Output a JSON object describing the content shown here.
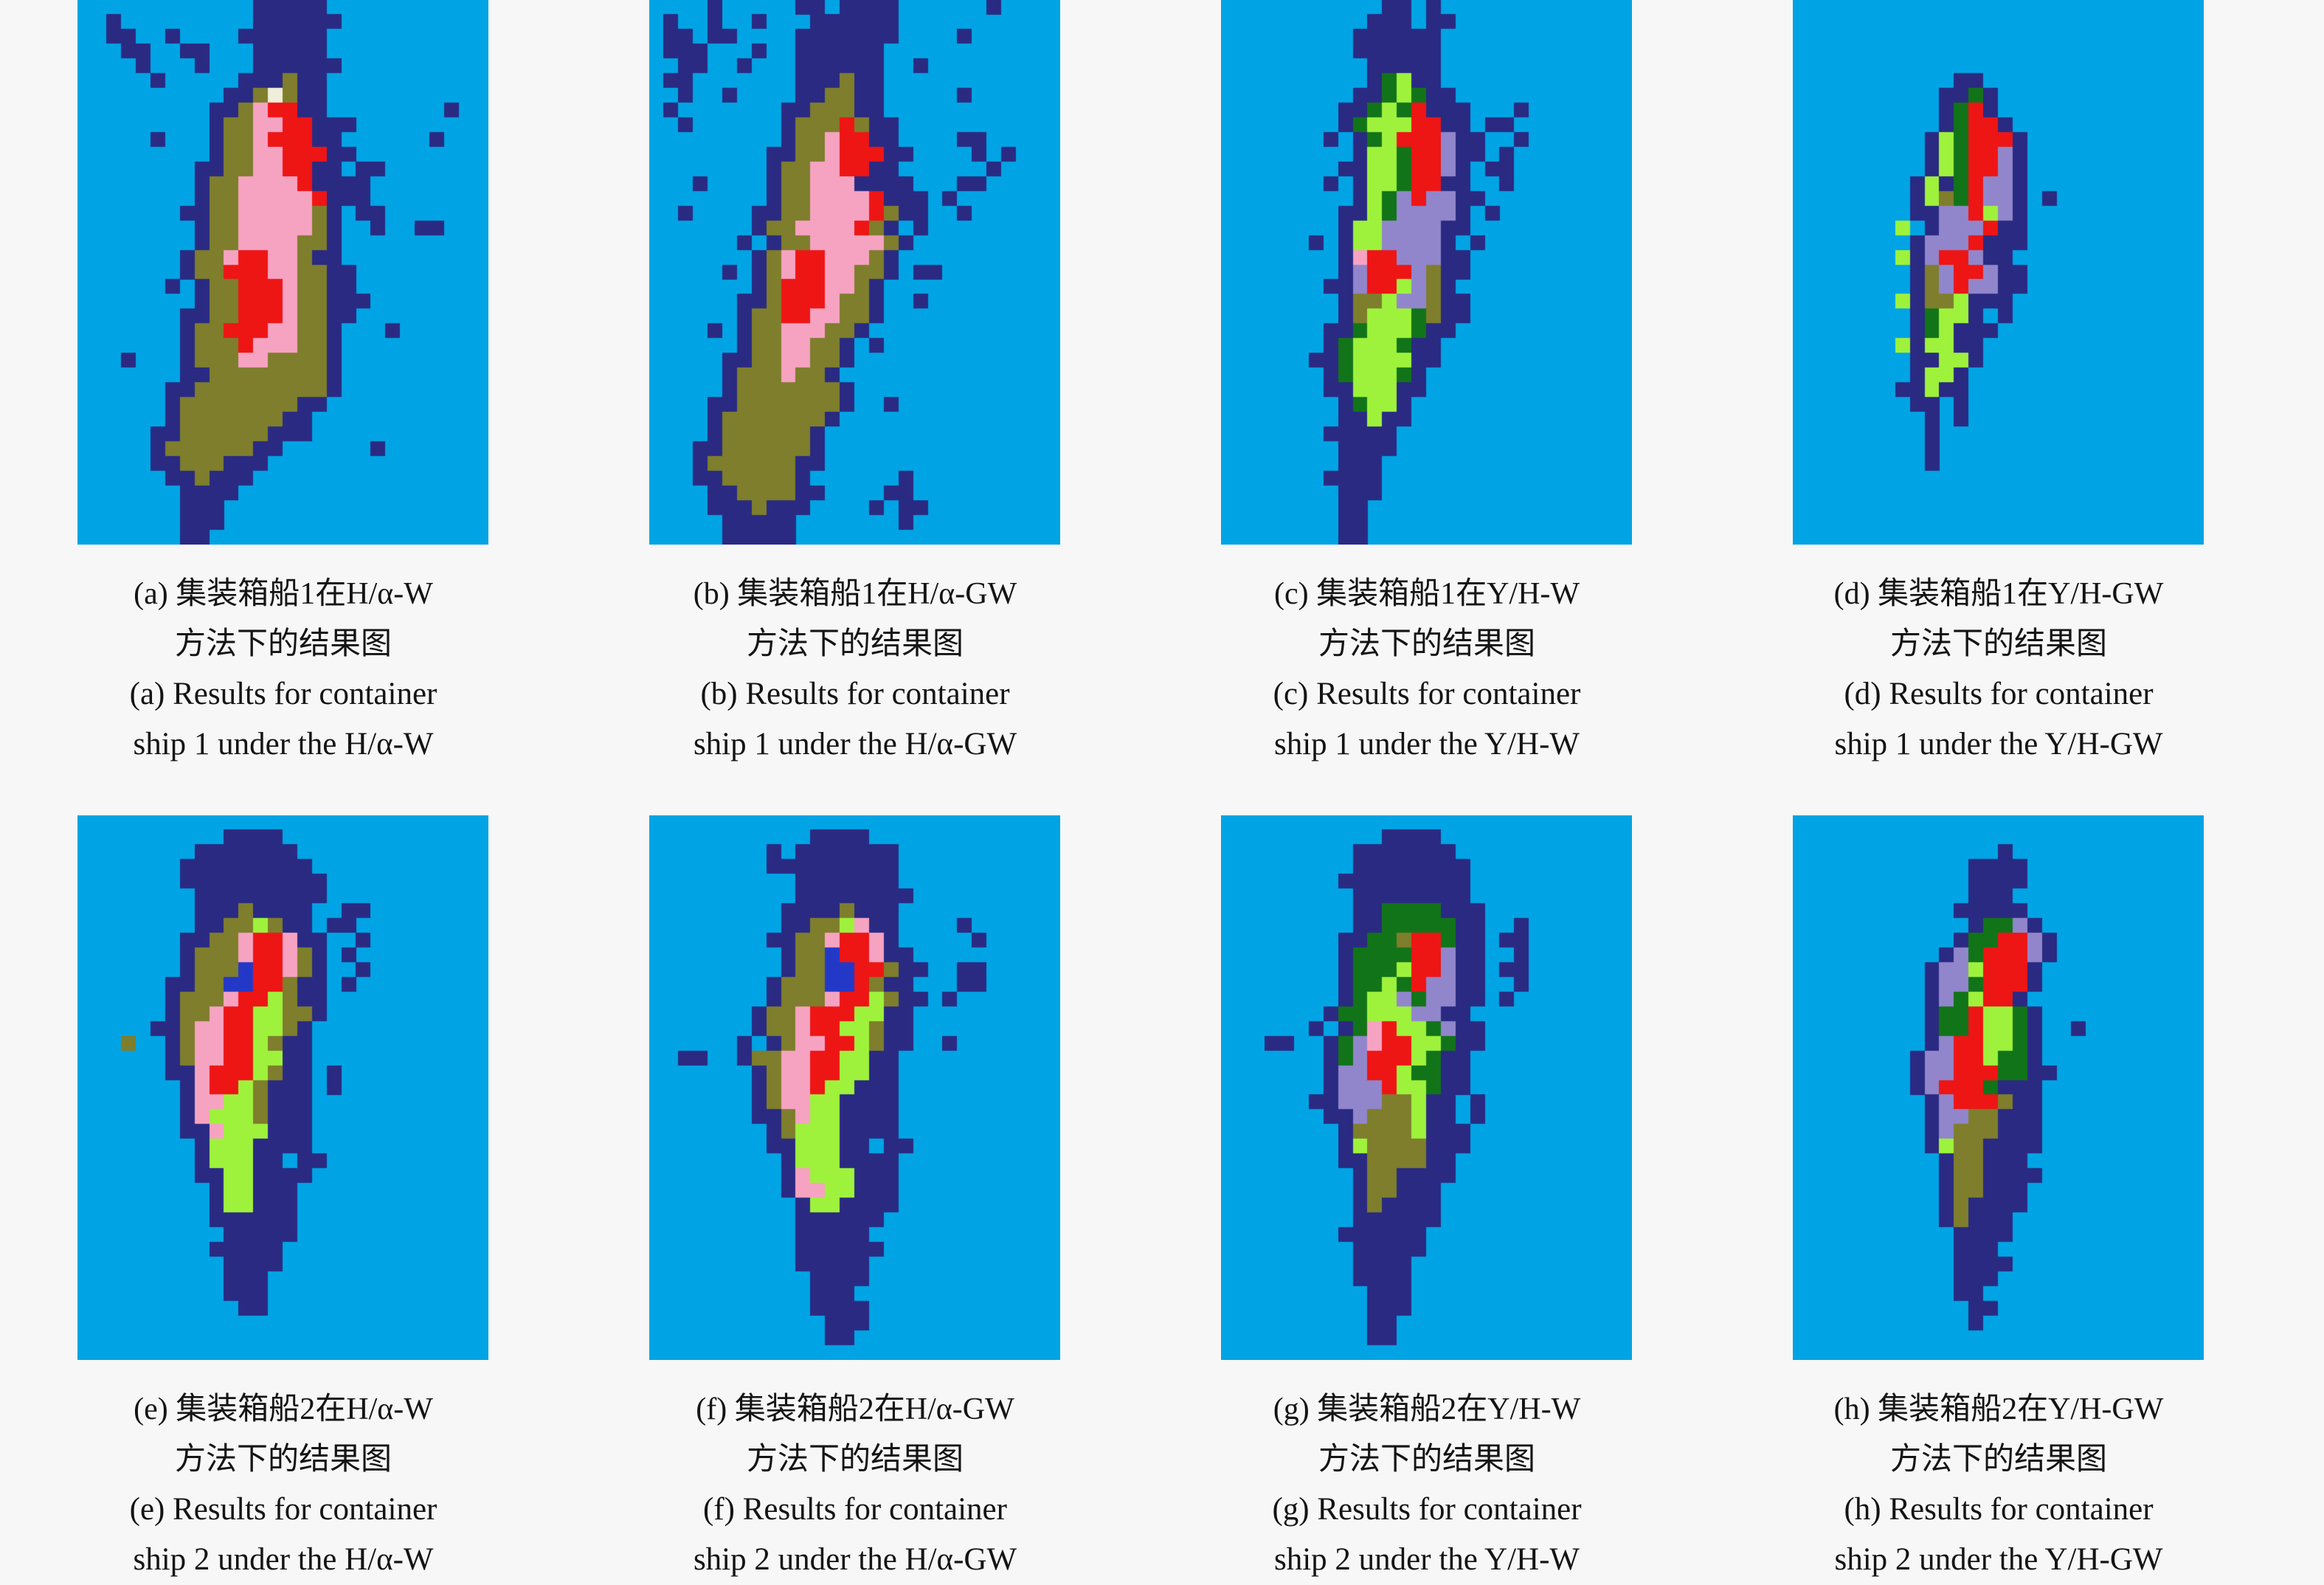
{
  "page": {
    "background": "#F7F7F7",
    "figure_type": "classification result maps"
  },
  "palette": {
    ".": "#00A4E4",
    "n": "#2A2A82",
    "o": "#7E7E2C",
    "g": "#127418",
    "l": "#9EF23C",
    "r": "#EE1515",
    "p": "#F6A3C2",
    "u": "#9186CB",
    "b": "#2438C8",
    "w": "#EEEEDA"
  },
  "grid": {
    "cols": 28,
    "rows": 37
  },
  "panels": [
    {
      "id": "a",
      "caption_zh_1": "(a) 集装箱船1在H/α-W",
      "caption_zh_2": "方法下的结果图",
      "caption_en_1": "(a) Results for container",
      "caption_en_2": "ship 1 under the H/α-W",
      "pixels": [
        "............nnnnn",
        "..n.........nnnnnn",
        "..nn..n....nnnnnn",
        "...nn..nn...nnnnn",
        "....n...n...nnnnnn",
        ".....n.....nnnonn",
        "..........nnowonn",
        ".........nnoprrnn........n",
        ".........noopprrnnn",
        ".....n...nooprrrnn......n",
        ".........noopprrrnn",
        "........nnoopprrnn.nn",
        "........noopppprnnnn",
        "........nooppppprnnn",
        ".......nnoopppppon.nn",
        "........noopppppon..n..nn",
        "........nooppppoon",
        ".......nooprrpponn",
        ".......noorrrppoonn",
        "......n.noorrrpoonn",
        "........noorrrpoonnn",
        ".......nnoorrrpoonn",
        ".......noorrrppoon...n",
        ".......nooorpppoon",
        "...n...noooppoooon",
        ".......nnoooooooon",
        "......nnooooooooon",
        "......noooooooonn",
        "......nooooooonn",
        ".....nnoooooonnn",
        ".....noooooonn......n",
        ".....nnooonnn",
        "......nnonnn",
        ".......nnnn",
        ".......nnn",
        ".......nnn",
        ".......nn"
      ]
    },
    {
      "id": "b",
      "caption_zh_1": "(b) 集装箱船1在H/α-GW",
      "caption_zh_2": "方法下的结果图",
      "caption_en_1": "(b) Results for container",
      "caption_en_2": "ship 1 under the H/α-GW",
      "pixels": [
        "....n.....nn.nnnn......n",
        ".n..n..n...nnnnnn",
        ".nn.nn....nnnnnnn....n",
        ".nnn...n..nnnnnn",
        "..nn..n...nnnnnn..n",
        ".nn.......nnnonn",
        "..n..n....nnoonn.....n",
        ".n.......nnooonn",
        "..n......noooronn",
        ".........nooprrnn....nn",
        "........nnooprrrnn....n.n",
        "........noopprrnn......n",
        "...n....noopppnnnn...nn",
        "........noopppprnnn.n",
        "..n....nnooppppronn..n",
        ".......nooppppron.n",
        "......n.noopppppon",
        ".......noprrpppon",
        ".....n.noprrppoon.nn",
        ".......norrrppon",
        "......nnorrrpoon..n",
        "......noorrppoon",
        "....n.noopppoon",
        "......nooppoon.n",
        ".....nnooppoon",
        ".....nooopoon",
        ".....nooooooon",
        "....nnooooooon..n",
        "....nooooooon",
        "....noooooon",
        "...nnoooooon",
        "...noooooonn",
        "...nnooooon......n",
        "....nnoooonn....nn",
        "....nnnonnn....n.nn",
        ".....nnnnn.......n",
        ".....nnnnn"
      ]
    },
    {
      "id": "c",
      "caption_zh_1": "(c) 集装箱船1在Y/H-W",
      "caption_zh_2": "方法下的结果图",
      "caption_en_1": "(c) Results for container",
      "caption_en_2": "ship 1 under the Y/H-W",
      "pixels": [
        "...........nn.n",
        "..........nnn.nn",
        ".........nnnnnn",
        ".........nnnnnn",
        "..........nnnnn",
        "..........nglnn",
        ".........nnglgnn",
        "........nnglgrnnn...n",
        "........nglllrrnn.nn",
        ".......n.nglrrrunn..n",
        ".........nllgrrunn.n",
        "........nnllgrrun.nn",
        ".......n.nllgrrnn..n",
        ".........nlguruunn",
        "........nnlguuuun.n",
        "........nlluuuunn",
        "......n.nlluuuun.n",
        "........nprruuunn",
        "........nurrruonn",
        ".......nnurrluon",
        "........nooluuonn",
        "........nolllgonn",
        ".......nnglllgnn",
        ".......nglllgnn",
        "......nngllllnn",
        ".......nglllgn",
        ".......nnlllnn",
        "........nglln",
        "........nnlnn",
        ".......nnnnn",
        "........nnnn",
        "........nnn",
        ".......nnnn",
        "........nnn",
        "........nn",
        "........nn",
        "........nn"
      ]
    },
    {
      "id": "d",
      "caption_zh_1": "(d) 集装箱船1在Y/H-GW",
      "caption_zh_2": "方法下的结果图",
      "caption_en_1": "(d) Results for container",
      "caption_en_2": "ship 1 under the Y/H-GW",
      "pixels": [
        "",
        "",
        "",
        "",
        "",
        "...........nn",
        "..........nngn",
        "..........ngrn",
        "..........ngrrn",
        ".........nlgrrrn",
        ".........nlgrrun",
        ".........nlgrrun",
        "........nlngruun",
        "........nlogruun.n",
        "........nnuurlun",
        ".......l.nuuurnn",
        "........nuuurnnn",
        ".......lnurrunn",
        "........nourrunn",
        "........nouruunn",
        ".......lnoolnnn",
        "........nglln.n",
        "........nglnnn",
        ".......lnllnn",
        "........nnlln",
        "........nlln",
        ".......nnlnn",
        "........nn.n",
        ".........n.n",
        ".........n",
        ".........n",
        ".........n",
        "",
        "",
        "",
        "",
        ""
      ]
    },
    {
      "id": "e",
      "caption_zh_1": "(e) 集装箱船2在H/α-W",
      "caption_zh_2": "方法下的结果图",
      "caption_en_1": "(e) Results for container",
      "caption_en_2": "ship 2 under the H/α-W",
      "pixels": [
        "",
        "..........nnnn",
        "........nnnnnnn",
        ".......nnnnnnnnn",
        ".......nnnnnnnnnn",
        "........nnnnnnnnn",
        "........nnnonnnn..nn",
        "........nnoolonn.nn",
        ".......nnooprrpnn..n",
        ".......noooprrpon.n",
        ".......nooobrrpon..n",
        "......nnoobbrronn.n",
        "......noooprrlonn",
        "......nooprrlloon",
        ".....nnopprrllon",
        "...o..nopprrlonn",
        "......nopprrllnn",
        "......nnprrrlonn.n",
        ".......nprrlonnn.n",
        ".......nppllonnn",
        ".......nplllonnn",
        ".......nnplllnnn",
        "........nlllnnnn",
        "........nlllnn.nn",
        "........nnllnnnn",
        ".........nllnnn",
        ".........nllnnn",
        ".........nnnnnn",
        "..........nnnnn",
        ".........nnnnn",
        "..........nnnn",
        "..........nnn",
        "..........nnn",
        "...........nn",
        "",
        "",
        ""
      ]
    },
    {
      "id": "f",
      "caption_zh_1": "(f) 集装箱船2在H/α-GW",
      "caption_zh_2": "方法下的结果图",
      "caption_en_1": "(f) Results for container",
      "caption_en_2": "ship 2 under the H/α-GW",
      "pixels": [
        "",
        "...........nnnn",
        "........n.nnnnnnn",
        "........nnnnnnnnn",
        "..........nnnnnnn",
        "..........nnnnnnnn",
        ".........nnnnonnn",
        ".........nnoolpnn....n",
        "........nnooprrpn.....n",
        ".........noobrrpnn",
        ".........noobbrronn..nn",
        "........nooobbronn...nn",
        "........noooprrlonn.n",
        ".......nooprrrllnn",
        ".......nooprrllonn",
        "......n.nopprrlonn..n",
        "..nn..noopprrllnn",
        ".......nopprrllnn",
        ".......nopprllnnn",
        ".......noppllnnnn",
        ".......nnopllnnnn",
        "........nolllnnnn",
        "........nnlllnn.nn",
        ".........nlllnnnn",
        ".........nplllnnn",
        ".........nppllnnn",
        "..........nllnnnn",
        "..........nnnnnn",
        "..........nnnnn",
        "..........nnnnnn",
        "..........nnnnn",
        "...........nnnn",
        "...........nnn",
        "...........nnnn",
        "............nnn",
        "............nn",
        ""
      ]
    },
    {
      "id": "g",
      "caption_zh_1": "(g) 集装箱船2在Y/H-W",
      "caption_zh_2": "方法下的结果图",
      "caption_en_1": "(g) Results for container",
      "caption_en_2": "ship 2 under the Y/H-W",
      "pixels": [
        "",
        "...........nnnn",
        ".........nnnnnnn",
        ".........nnnnnnnn",
        "........nnnnnnnnn",
        ".........nnnnnnnn",
        ".........nnggggnnn",
        ".........nngggggnn..n",
        "........nnggorrgnn.nn",
        "........nggggrrunn..n",
        "........nggglrrunn.nn",
        "........ngglgruunn..n",
        "........nglluguunn.n",
        ".......nggllluunn",
        "......n.ngprllgunn",
        "...nn..nguprrllgnn",
        ".......ngurrrlgnn",
        ".......nuurrlggnn",
        ".......nuuurllgnn",
        "......nnuuuoolnn.n",
        ".......nnuooolnn.n",
        "........noooolnnn",
        "........nloooonnn",
        "........nnoooonn",
        ".........noonnnn",
        ".........noonnn",
        ".........nonnnn",
        ".........nnnnnn",
        "........nnnnnn",
        ".........nnnnn",
        ".........nnnn",
        ".........nnnn",
        "..........nnn",
        "..........nnn",
        "..........nn",
        "..........nn",
        ""
      ]
    },
    {
      "id": "h",
      "caption_zh_1": "(h) 集装箱船2在Y/H-GW",
      "caption_zh_2": "方法下的结果图",
      "caption_en_1": "(h) Results for container",
      "caption_en_2": "ship 2 under the Y/H-GW",
      "pixels": [
        "",
        "",
        "..............n",
        "............nnnn",
        "............nnnn",
        "............nnn",
        "...........nnnnn",
        "............nggun",
        "...........nggrrun",
        "..........nugrrrun",
        ".........nuulrrrn",
        ".........nuugrrrn",
        ".........nuglrrn",
        ".........nggrllgn",
        ".........nggrllgn..n",
        ".........nurrllgn",
        "........nuurrlggn",
        "........nuurrrggnn",
        "........nurrrgnnn",
        ".........nurrronn",
        ".........nuuoonnn",
        ".........nuooonnn",
        ".........nloonnnn",
        "..........noonnn",
        "..........noonnnn",
        "..........noonnn",
        "..........nonnnn",
        "..........nonnn",
        "...........nnnn",
        "...........nnn",
        "...........nnnn",
        "...........nnn",
        "...........nn",
        "............nn",
        "............n",
        "",
        ""
      ]
    }
  ]
}
